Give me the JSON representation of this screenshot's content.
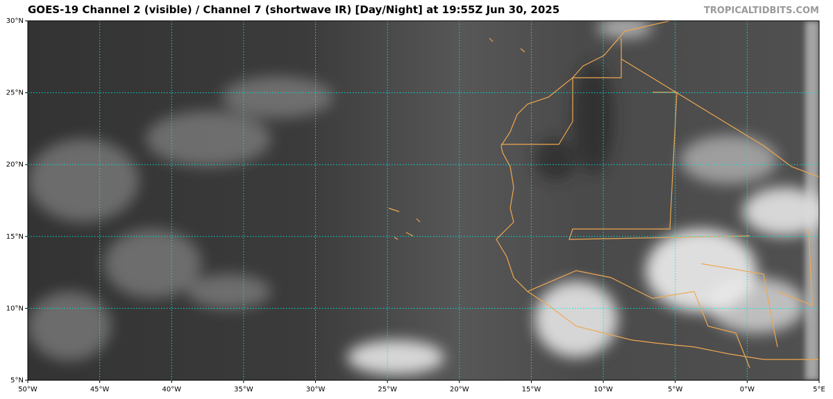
{
  "map": {
    "title": "GOES-19 Channel 2 (visible) / Channel 7 (shortwave IR) [Day/Night] at 19:55Z Jun 30, 2025",
    "watermark": "TROPICALTIDBITS.COM",
    "xlim": [
      -50,
      5
    ],
    "ylim": [
      5,
      30
    ],
    "xticks": [
      {
        "value": -50,
        "label": "50°W"
      },
      {
        "value": -45,
        "label": "45°W"
      },
      {
        "value": -40,
        "label": "40°W"
      },
      {
        "value": -35,
        "label": "35°W"
      },
      {
        "value": -30,
        "label": "30°W"
      },
      {
        "value": -25,
        "label": "25°W"
      },
      {
        "value": -20,
        "label": "20°W"
      },
      {
        "value": -15,
        "label": "15°W"
      },
      {
        "value": -10,
        "label": "10°W"
      },
      {
        "value": -5,
        "label": "5°W"
      },
      {
        "value": 0,
        "label": "0°W"
      },
      {
        "value": 5,
        "label": "5°E"
      }
    ],
    "yticks": [
      {
        "value": 5,
        "label": "5°N"
      },
      {
        "value": 10,
        "label": "10°N"
      },
      {
        "value": 15,
        "label": "15°N"
      },
      {
        "value": 20,
        "label": "20°N"
      },
      {
        "value": 25,
        "label": "25°N"
      },
      {
        "value": 30,
        "label": "30°N"
      }
    ]
  }
}
